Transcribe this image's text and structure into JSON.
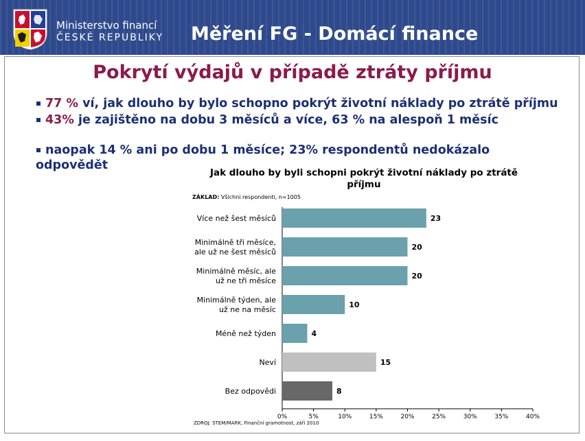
{
  "header": {
    "ministry_line1": "Ministerstvo financí",
    "ministry_line2": "ČESKÉ REPUBLIKY",
    "title": "Měření FG - Domácí finance",
    "crest_icon": "czech-coat-of-arms-icon"
  },
  "slide": {
    "title": "Pokrytí výdajů v případě ztráty příjmu",
    "bullets": [
      {
        "highlight": "77 %",
        "text": " ví, jak dlouho by bylo schopno pokrýt životní náklady po ztrátě příjmu"
      },
      {
        "highlight": "43%",
        "text": " je zajištěno na dobu 3 měsíců a více, 63 % na alespoň 1 měsíc"
      },
      {
        "highlight": "",
        "text": "naopak 14 % ani po dobu 1 měsíce; 23% respondentů nedokázalo odpovědět"
      }
    ]
  },
  "chart_data": {
    "type": "bar",
    "orientation": "horizontal",
    "title": "Jak dlouho by byli schopni pokrýt životní náklady po ztrátě příjmu",
    "basis_label": "ZÁKLAD:",
    "basis_text": "Všichni respondenti, n=1005",
    "source": "ZDROJ: STEM/MARK, Finanční gramotnost, září 2010",
    "categories": [
      [
        "Více než šest měsíců"
      ],
      [
        "Minimálně tři měsíce,",
        "ale už ne šest měsíců"
      ],
      [
        "Minimálně měsíc, ale",
        "už ne tři měsíce"
      ],
      [
        "Minimálně týden, ale",
        "už ne na měsíc"
      ],
      [
        "Méně než týden"
      ],
      [
        "Neví"
      ],
      [
        "Bez odpovědi"
      ]
    ],
    "values": [
      23,
      20,
      20,
      10,
      4,
      15,
      8
    ],
    "bar_colors": [
      "#6aa1ad",
      "#6aa1ad",
      "#6aa1ad",
      "#6aa1ad",
      "#6aa1ad",
      "#c0c0c0",
      "#686868"
    ],
    "xlim": [
      0,
      40
    ],
    "xticks": [
      "0%",
      "5%",
      "10%",
      "15%",
      "20%",
      "25%",
      "30%",
      "35%",
      "40%"
    ],
    "grid": false
  },
  "colors": {
    "header_bg": "#2f4a8c",
    "title": "#8b1a4a",
    "bullet_text": "#1c2f75"
  }
}
